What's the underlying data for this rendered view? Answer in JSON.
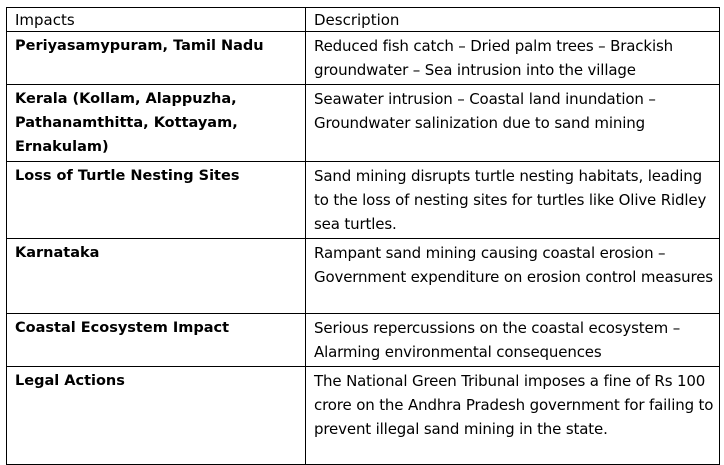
{
  "table": {
    "headers": [
      "Impacts",
      "Description"
    ],
    "rows": [
      {
        "impact": "Periyasamypuram, Tamil Nadu",
        "description": "Reduced fish catch – Dried palm trees – Brackish groundwater – Sea intrusion into the village"
      },
      {
        "impact": "Kerala (Kollam, Alappuzha, Pathanamthitta, Kottayam, Ernakulam)",
        "description": "Seawater intrusion – Coastal land inundation – Groundwater salinization due to sand mining"
      },
      {
        "impact": "Loss of Turtle Nesting Sites",
        "description": "Sand mining disrupts turtle nesting habitats, leading to the loss of nesting sites for turtles like Olive Ridley sea turtles."
      },
      {
        "impact": "Karnataka",
        "description": "Rampant sand mining causing coastal erosion – Government expenditure on erosion control measures"
      },
      {
        "impact": "Coastal Ecosystem Impact",
        "description": "Serious repercussions on the coastal ecosystem – Alarming environmental consequences"
      },
      {
        "impact": "Legal Actions",
        "description": "The National Green Tribunal imposes a fine of Rs 100 crore on the Andhra Pradesh government for failing to prevent illegal sand mining in the state."
      }
    ]
  }
}
